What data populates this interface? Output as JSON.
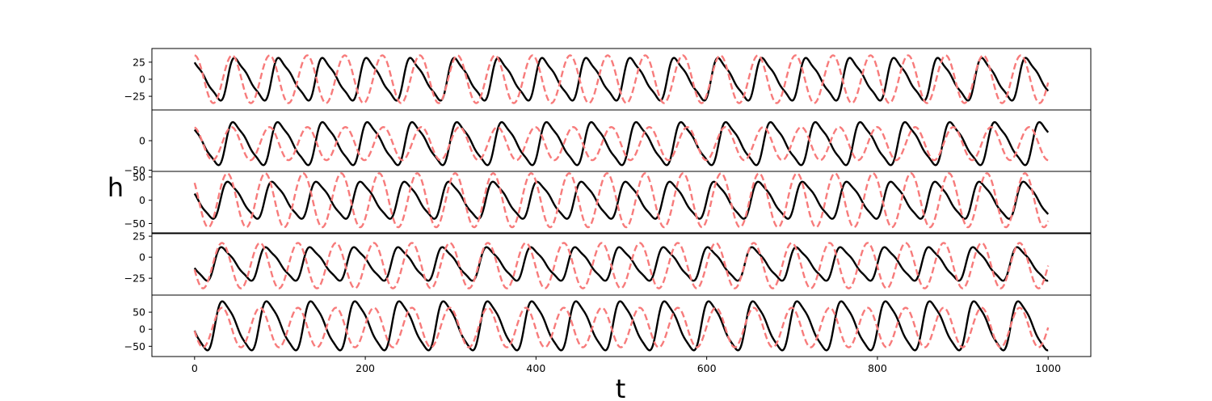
{
  "chart_data": {
    "type": "line",
    "xlabel": "t",
    "ylabel": "h",
    "xlim": [
      -50,
      1050
    ],
    "xticks": [
      0,
      200,
      400,
      600,
      800,
      1000
    ],
    "xtick_labels": [
      "0",
      "200",
      "400",
      "600",
      "800",
      "1000"
    ],
    "colors": {
      "black_series": "#000000",
      "dashed_series": "#f77b7b"
    },
    "panels": [
      {
        "ylim": [
          -45,
          45
        ],
        "yticks": [
          -25,
          0,
          25
        ],
        "ytick_labels": [
          "−25",
          "0",
          "25"
        ],
        "series": [
          {
            "style": "solid",
            "period": 51.5,
            "amplitude": 36,
            "offset": 0,
            "phase_deg": 90,
            "sharp": 0.65
          },
          {
            "style": "dashed",
            "period": 44,
            "amplitude": 35,
            "offset": 0,
            "phase_deg": 90,
            "sharp": 0.0
          }
        ]
      },
      {
        "ylim": [
          -52,
          52
        ],
        "yticks": [
          -50,
          0
        ],
        "ytick_labels": [
          "−50",
          "0"
        ],
        "series": [
          {
            "style": "solid",
            "period": 52.5,
            "amplitude": 42,
            "offset": -5,
            "phase_deg": 110,
            "sharp": 0.6
          },
          {
            "style": "dashed",
            "period": 44.5,
            "amplitude": 28,
            "offset": -5,
            "phase_deg": 100,
            "sharp": 0.0
          }
        ]
      },
      {
        "ylim": [
          -70,
          62
        ],
        "yticks": [
          -50,
          0,
          50
        ],
        "ytick_labels": [
          "−50",
          "0",
          "50"
        ],
        "series": [
          {
            "style": "solid",
            "period": 51.8,
            "amplitude": 46,
            "offset": 0,
            "phase_deg": 150,
            "sharp": 0.55
          },
          {
            "style": "dashed",
            "period": 44.5,
            "amplitude": 58,
            "offset": 0,
            "phase_deg": 140,
            "sharp": 0.0
          }
        ]
      },
      {
        "ylim": [
          -45,
          28
        ],
        "yticks": [
          -25,
          0,
          25
        ],
        "ytick_labels": [
          "−25",
          "0",
          "25"
        ],
        "series": [
          {
            "style": "solid",
            "period": 51.8,
            "amplitude": 23,
            "offset": -8,
            "phase_deg": 200,
            "sharp": 0.6
          },
          {
            "style": "dashed",
            "period": 44.5,
            "amplitude": 27,
            "offset": -10,
            "phase_deg": 190,
            "sharp": 0.0
          }
        ]
      },
      {
        "ylim": [
          -80,
          100
        ],
        "yticks": [
          -50,
          0,
          50
        ],
        "ytick_labels": [
          "−50",
          "0",
          "50"
        ],
        "series": [
          {
            "style": "solid",
            "period": 51.8,
            "amplitude": 83,
            "offset": 10,
            "phase_deg": 195,
            "sharp": 0.5
          },
          {
            "style": "dashed",
            "period": 44.5,
            "amplitude": 58,
            "offset": 5,
            "phase_deg": 190,
            "sharp": 0.0
          }
        ]
      }
    ]
  }
}
